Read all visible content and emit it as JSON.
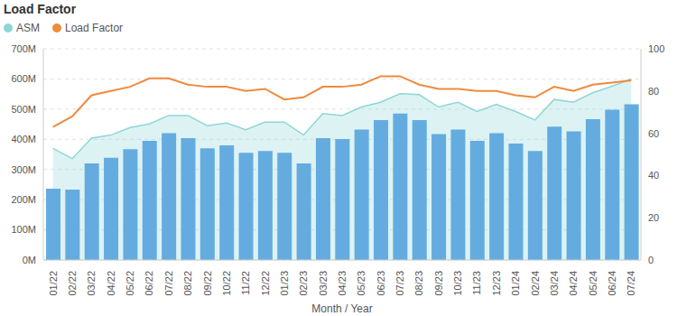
{
  "chart_data": {
    "type": "bar",
    "title": "Load Factor",
    "x_label": "Month / Year",
    "categories": [
      "01/22",
      "02/22",
      "03/22",
      "04/22",
      "05/22",
      "06/22",
      "07/22",
      "08/22",
      "09/22",
      "10/22",
      "11/22",
      "12/22",
      "01/23",
      "02/23",
      "03/23",
      "04/23",
      "05/23",
      "06/23",
      "07/23",
      "08/23",
      "09/23",
      "10/23",
      "11/23",
      "12/23",
      "01/24",
      "02/24",
      "03/24",
      "04/24",
      "05/24",
      "06/24",
      "07/24"
    ],
    "series": [
      {
        "name": "ASM",
        "type": "area",
        "color": "#8fd6d6",
        "values": [
          370,
          336,
          404,
          414,
          439,
          451,
          479,
          479,
          445,
          454,
          432,
          457,
          457,
          414,
          485,
          479,
          507,
          523,
          551,
          548,
          507,
          523,
          492,
          516,
          492,
          464,
          532,
          523,
          554,
          576,
          600
        ]
      },
      {
        "color": "#64ace0",
        "values": [
          236,
          233,
          320,
          339,
          367,
          395,
          420,
          404,
          370,
          380,
          355,
          361,
          355,
          320,
          404,
          401,
          432,
          464,
          485,
          464,
          417,
          432,
          395,
          420,
          386,
          361,
          442,
          426,
          467,
          498,
          516
        ]
      },
      {
        "name": "Load Factor",
        "type": "line",
        "color": "#f08a3c",
        "axis": "y2",
        "values": [
          63,
          68,
          78,
          80,
          82,
          86,
          86,
          83,
          82,
          82,
          80,
          81,
          76,
          77,
          82,
          82,
          83,
          87,
          87,
          83,
          81,
          81,
          80,
          80,
          78,
          77,
          82,
          80,
          83,
          84,
          85
        ]
      }
    ],
    "ylim": [
      0,
      700
    ],
    "yticks": [
      {
        "value": 0,
        "label": "0M"
      },
      {
        "value": 100,
        "label": "100M"
      },
      {
        "value": 200,
        "label": "200M"
      },
      {
        "value": 300,
        "label": "300M"
      },
      {
        "value": 400,
        "label": "400M"
      },
      {
        "value": 500,
        "label": "500M"
      },
      {
        "value": 600,
        "label": "600M"
      },
      {
        "value": 700,
        "label": "700M"
      }
    ],
    "y2lim": [
      0,
      100
    ],
    "y2ticks": [
      0,
      20,
      40,
      60,
      80,
      100
    ],
    "grid": true
  }
}
